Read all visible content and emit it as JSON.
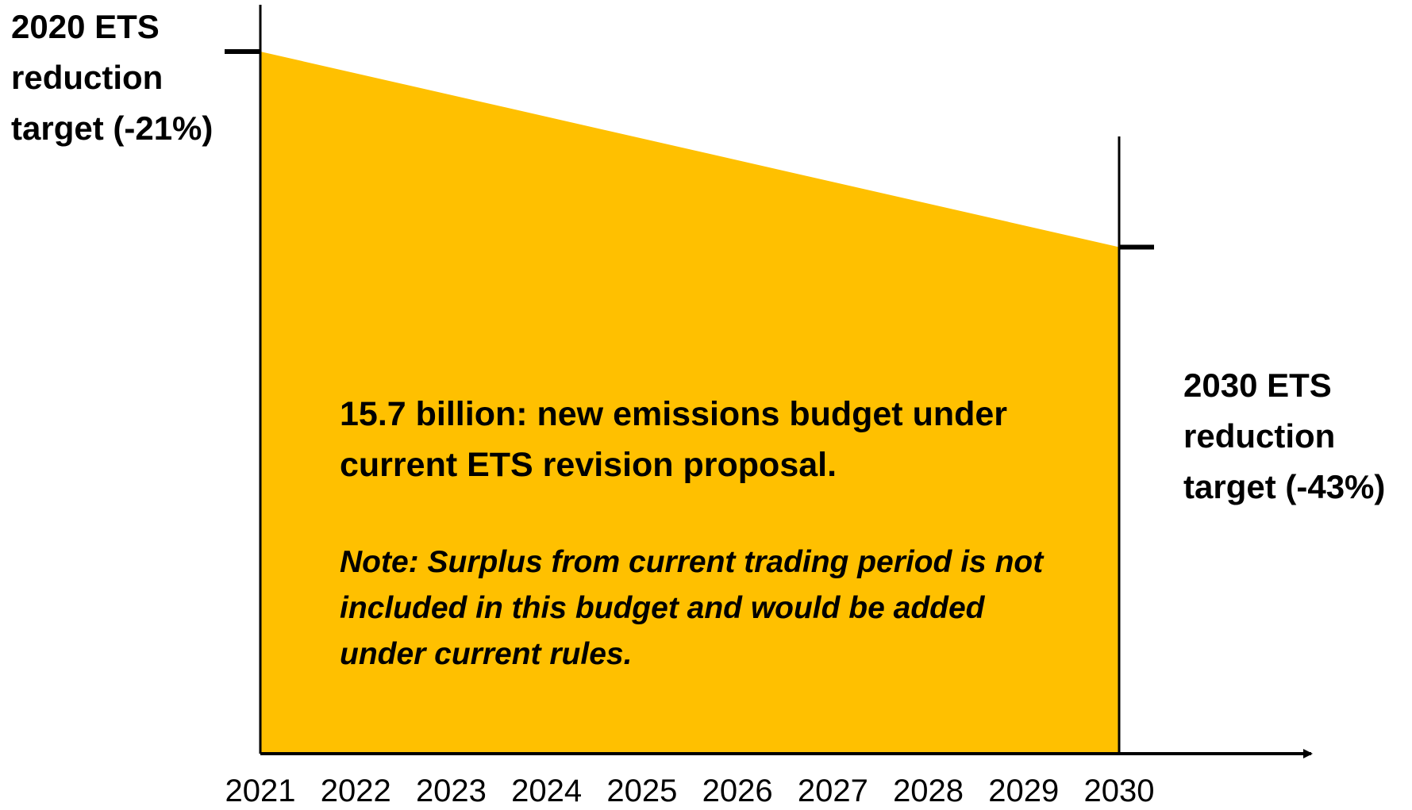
{
  "chart_data": {
    "type": "area",
    "x": [
      2021,
      2022,
      2023,
      2024,
      2025,
      2026,
      2027,
      2028,
      2029,
      2030
    ],
    "tick_labels": [
      "2021",
      "2022",
      "2023",
      "2024",
      "2025",
      "2026",
      "2027",
      "2028",
      "2029",
      "2030"
    ],
    "start": {
      "x": 2021,
      "reduction_pct": -21
    },
    "end": {
      "x": 2030,
      "reduction_pct": -43
    },
    "fill_color": "#FFC000",
    "annotations": {
      "start_label": "2020 ETS reduction target (-21%)",
      "end_label": "2030 ETS reduction target (-43%)",
      "main_note": "15.7 billion: new emissions budget under current ETS revision proposal.",
      "sub_note": "Note: Surplus from current trading period is not included in this budget and would be added under current rules."
    },
    "grid": false,
    "legend": "none"
  }
}
